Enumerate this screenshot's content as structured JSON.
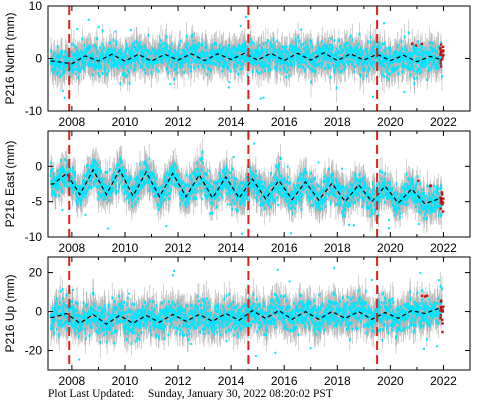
{
  "chart_data": [
    {
      "type": "scatter",
      "ylabel": "P216 North (mm)",
      "ylim": [
        -10,
        10
      ],
      "yticks": [
        -10,
        0,
        10
      ],
      "x_ticks": [
        2008,
        2010,
        2012,
        2014,
        2016,
        2018,
        2020,
        2022
      ],
      "xlim": [
        2007.1,
        2023.0
      ],
      "event_lines": [
        2007.9,
        2014.65,
        2019.5
      ],
      "series": [
        {
          "values": [
            [
              2007.3,
              -0.5
            ],
            [
              2008.0,
              -1.0
            ],
            [
              2008.5,
              0.5
            ],
            [
              2009.0,
              -0.5
            ],
            [
              2009.5,
              0.8
            ],
            [
              2010.0,
              -0.5
            ],
            [
              2010.5,
              0.8
            ],
            [
              2011.0,
              -0.5
            ],
            [
              2011.5,
              0.8
            ],
            [
              2012.0,
              -0.3
            ],
            [
              2012.5,
              0.9
            ],
            [
              2013.0,
              -0.4
            ],
            [
              2013.5,
              0.9
            ],
            [
              2014.0,
              -0.2
            ],
            [
              2014.5,
              1.0
            ],
            [
              2015.0,
              -0.3
            ],
            [
              2015.5,
              1.0
            ],
            [
              2016.0,
              -0.4
            ],
            [
              2016.5,
              1.0
            ],
            [
              2017.0,
              -0.3
            ],
            [
              2017.5,
              1.1
            ],
            [
              2018.0,
              -0.4
            ],
            [
              2018.5,
              0.9
            ],
            [
              2019.0,
              -0.3
            ],
            [
              2019.5,
              0.8
            ],
            [
              2020.0,
              -0.4
            ],
            [
              2020.5,
              0.6
            ],
            [
              2021.0,
              -0.6
            ],
            [
              2021.5,
              0.4
            ],
            [
              2021.9,
              -0.2
            ]
          ]
        }
      ]
    },
    {
      "type": "scatter",
      "ylabel": "P216 East (mm)",
      "ylim": [
        -10,
        5
      ],
      "yticks": [
        -10,
        -5,
        0
      ],
      "x_ticks": [
        2008,
        2010,
        2012,
        2014,
        2016,
        2018,
        2020,
        2022
      ],
      "xlim": [
        2007.1,
        2023.0
      ],
      "event_lines": [
        2007.9,
        2014.65,
        2019.5
      ],
      "series": [
        {
          "values": [
            [
              2007.3,
              -2.5
            ],
            [
              2007.8,
              -1.0
            ],
            [
              2008.3,
              -4.0
            ],
            [
              2008.8,
              -0.5
            ],
            [
              2009.3,
              -4.0
            ],
            [
              2009.8,
              -0.5
            ],
            [
              2010.3,
              -4.2
            ],
            [
              2010.8,
              -0.8
            ],
            [
              2011.3,
              -4.3
            ],
            [
              2011.8,
              -1.0
            ],
            [
              2012.3,
              -4.3
            ],
            [
              2012.8,
              -1.2
            ],
            [
              2013.3,
              -4.5
            ],
            [
              2013.8,
              -1.5
            ],
            [
              2014.3,
              -4.5
            ],
            [
              2014.8,
              -1.8
            ],
            [
              2015.3,
              -4.6
            ],
            [
              2015.8,
              -2.0
            ],
            [
              2016.3,
              -4.7
            ],
            [
              2016.8,
              -2.2
            ],
            [
              2017.3,
              -4.8
            ],
            [
              2017.8,
              -2.4
            ],
            [
              2018.3,
              -5.0
            ],
            [
              2018.8,
              -2.6
            ],
            [
              2019.3,
              -5.0
            ],
            [
              2019.8,
              -2.8
            ],
            [
              2020.3,
              -5.2
            ],
            [
              2020.8,
              -3.2
            ],
            [
              2021.3,
              -5.3
            ],
            [
              2021.9,
              -4.5
            ]
          ]
        }
      ]
    },
    {
      "type": "scatter",
      "ylabel": "P216 Up (mm)",
      "ylim": [
        -30,
        28
      ],
      "yticks": [
        -20,
        0,
        20
      ],
      "x_ticks": [
        2008,
        2010,
        2012,
        2014,
        2016,
        2018,
        2020,
        2022
      ],
      "xlim": [
        2007.1,
        2023.0
      ],
      "event_lines": [
        2007.9,
        2014.65,
        2019.5
      ],
      "series": [
        {
          "values": [
            [
              2007.3,
              -3.0
            ],
            [
              2007.8,
              -1.0
            ],
            [
              2008.3,
              -6.0
            ],
            [
              2008.8,
              -1.5
            ],
            [
              2009.3,
              -6.5
            ],
            [
              2009.8,
              -2.0
            ],
            [
              2010.3,
              -6.0
            ],
            [
              2010.8,
              -2.0
            ],
            [
              2011.3,
              -5.5
            ],
            [
              2011.8,
              -1.5
            ],
            [
              2012.3,
              -5.0
            ],
            [
              2012.8,
              -1.5
            ],
            [
              2013.3,
              -5.0
            ],
            [
              2013.8,
              -1.0
            ],
            [
              2014.3,
              -4.5
            ],
            [
              2014.8,
              0.5
            ],
            [
              2015.3,
              -3.5
            ],
            [
              2015.8,
              0.5
            ],
            [
              2016.3,
              -4.0
            ],
            [
              2016.8,
              0.0
            ],
            [
              2017.3,
              -4.0
            ],
            [
              2017.8,
              0.0
            ],
            [
              2018.3,
              -3.5
            ],
            [
              2018.8,
              0.0
            ],
            [
              2019.3,
              -4.0
            ],
            [
              2019.8,
              -0.5
            ],
            [
              2020.3,
              -3.5
            ],
            [
              2020.8,
              0.5
            ],
            [
              2021.3,
              -1.0
            ],
            [
              2021.9,
              2.0
            ]
          ]
        }
      ]
    }
  ],
  "colors": {
    "error_bar": "#b5b5b5",
    "data_points": "#00e5ff",
    "model_line": "#000000",
    "event_line": "#e0201a",
    "outliers": "#cc1010"
  },
  "footer": {
    "label": "Plot Last Updated:",
    "value": "Sunday, January 30, 2022 08:20:02 PST"
  }
}
